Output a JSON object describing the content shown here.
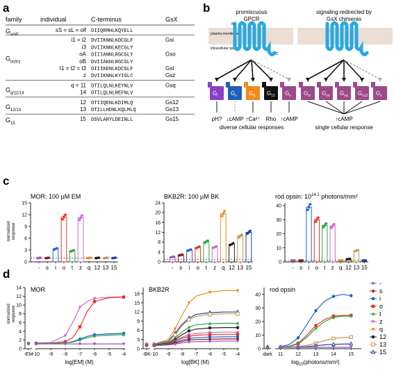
{
  "panel_labels": {
    "a": "a",
    "b": "b",
    "c": "c",
    "d": "d"
  },
  "table": {
    "headers": [
      "family",
      "individual",
      "C-terminus",
      "GsX"
    ],
    "groups": [
      {
        "family_main": "G",
        "family_sub": "s/olf",
        "rows": [
          {
            "individual": "sS = sL = olf",
            "seq": "DIIQRMHLKQYELL",
            "gsx": ""
          }
        ]
      },
      {
        "family_main": "G",
        "family_sub": "i/o/t/z",
        "rows": [
          {
            "individual": "i1 = i2",
            "seq": "DVIIKNNLKDCGLF",
            "gsx": "Gsi"
          },
          {
            "individual": "i3",
            "seq": "DVIIKNNLKECGLY",
            "gsx": ""
          },
          {
            "individual": "oA",
            "seq": "DIIIANNLRGCGLY",
            "gsx": "Gso"
          },
          {
            "individual": "oB",
            "seq": "DVIIAKNLRGCGLY",
            "gsx": ""
          },
          {
            "individual": "t1 = t2 = t3",
            "seq": "DIIIKENLKDCGLF",
            "gsx": "Gst"
          },
          {
            "individual": "z",
            "seq": "DVIIKNNLKYIGLC",
            "gsx": "Gsz"
          }
        ]
      },
      {
        "family_main": "G",
        "family_sub": "q/11/14",
        "rows": [
          {
            "individual": "q = 11",
            "seq": "DTILQLNLKEYNLV",
            "gsx": "Gsq"
          },
          {
            "individual": "14",
            "seq": "DTILQLNLREFNLV",
            "gsx": ""
          }
        ]
      },
      {
        "family_main": "G",
        "family_sub": "12/13",
        "rows": [
          {
            "individual": "12",
            "seq": "DTIIQENLKDIMLQ",
            "gsx": "Gs12"
          },
          {
            "individual": "13",
            "seq": "DTILLHDNLKQLMLQ",
            "gsx": "Gs13"
          }
        ]
      },
      {
        "family_main": "G",
        "family_sub": "15",
        "rows": [
          {
            "individual": "15",
            "seq": "DSVLARYLDEINLL",
            "gsx": "Gs15"
          }
        ]
      }
    ]
  },
  "diagram": {
    "left_title": [
      "promiscuous",
      "GPCR"
    ],
    "right_title": [
      "signaling redirected by",
      "GsX chimeras"
    ],
    "plasma_membrane": "plasma membrane",
    "intracellular": "intracellular space",
    "n_label": "N",
    "c_label": "C",
    "left_g": [
      {
        "main": "G",
        "sub": "i",
        "color": "#8a3fc7"
      },
      {
        "main": "G",
        "sub": "s",
        "color": "#1f5fbf"
      },
      {
        "main": "G",
        "sub": "q",
        "color": "#f08a1c"
      },
      {
        "main": "G",
        "sub": "12",
        "color": "#111111"
      },
      {
        "main": "G",
        "sub": "s",
        "color": "#9c4a8a"
      }
    ],
    "right_g": [
      {
        "main": "G",
        "sub": "si",
        "color": "#9c4a8a"
      },
      {
        "main": "G",
        "sub": "so",
        "color": "#9c4a8a"
      },
      {
        "main": "G",
        "sub": "sq",
        "color": "#9c4a8a"
      },
      {
        "main": "G",
        "sub": "s12",
        "color": "#9c4a8a"
      },
      {
        "main": "G",
        "sub": "s",
        "color": "#9c4a8a"
      }
    ],
    "left_outcomes": [
      "pH?",
      "↓cAMP",
      "↑Ca²⁺",
      "Rho",
      "↑cAMP"
    ],
    "left_caption": "diverse cellular responses",
    "right_outcome": "↑cAMP",
    "right_caption": "single cellular response",
    "gpcr_color": "#29a8e0"
  },
  "c_titles": [
    "MOR: 100 µM EM",
    "BKB2R: 100 µM BK",
    "rod opsin: 10^14.1 photons/mm²"
  ],
  "c_title3_parts": {
    "pre": "rod opsin: 10",
    "sup": "14.1",
    "post": " photons/mm²"
  },
  "c_ylabel": [
    "normalized",
    "response"
  ],
  "d_ylabel": [
    "normalized",
    "response"
  ],
  "d_titles": [
    "MOR",
    "BKB2R",
    "rod opsin"
  ],
  "d_xlabels": [
    "log[EM] (M)",
    "log[BK] (M)",
    "log10(photons/mm²)"
  ],
  "d_xlabel3_parts": {
    "pre": "log",
    "sub": "10",
    "post": "(photons/mm²)"
  },
  "legend": {
    "entries": [
      {
        "label": "-",
        "color": "#9b59b6",
        "marker": "tri-down"
      },
      {
        "label": "s",
        "color": "#8b1a1a",
        "marker": "diamond"
      },
      {
        "label": "i",
        "color": "#1f5fd6",
        "marker": "circle"
      },
      {
        "label": "o",
        "color": "#e8341c",
        "marker": "square"
      },
      {
        "label": "t",
        "color": "#27a844",
        "marker": "tri-up"
      },
      {
        "label": "z",
        "color": "#c66bd6",
        "marker": "tri-down"
      },
      {
        "label": "q",
        "color": "#f08a1c",
        "marker": "tri-down"
      },
      {
        "label": "12",
        "color": "#222222",
        "marker": "circle"
      },
      {
        "label": "13",
        "color": "#c8954a",
        "marker": "square-open"
      },
      {
        "label": "15",
        "color": "#1f3f9f",
        "marker": "tri-up-open"
      }
    ]
  },
  "chart_data": [
    {
      "type": "bar",
      "title": "MOR: 100 µM EM",
      "ylabel": "normalized response",
      "categories": [
        "-",
        "s",
        "i",
        "o",
        "t",
        "z",
        "q",
        "12",
        "13",
        "15"
      ],
      "values": [
        1.0,
        1.0,
        3.3,
        11.4,
        2.8,
        11.2,
        1.0,
        1.0,
        1.0,
        1.0
      ],
      "ylim": [
        0,
        15
      ],
      "yticks": [
        0,
        3,
        6,
        9,
        12,
        15
      ]
    },
    {
      "type": "bar",
      "title": "BKB2R: 100 µM BK",
      "ylabel": "normalized response",
      "categories": [
        "-",
        "s",
        "i",
        "o",
        "t",
        "z",
        "q",
        "12",
        "13",
        "15"
      ],
      "values": [
        2.0,
        2.8,
        4.8,
        5.9,
        8.2,
        6.0,
        19.6,
        7.2,
        10.5,
        12.0
      ],
      "ylim": [
        0,
        24
      ],
      "yticks": [
        0,
        4,
        8,
        12,
        16,
        20,
        24
      ]
    },
    {
      "type": "bar",
      "title": "rod opsin: 10^14.1 photons/mm²",
      "ylabel": "normalized response",
      "categories": [
        "-",
        "s",
        "i",
        "o",
        "t",
        "z",
        "q",
        "12",
        "13",
        "15"
      ],
      "values": [
        1.0,
        1.0,
        39.0,
        30.0,
        26.0,
        25.5,
        1.0,
        2.0,
        8.0,
        1.0
      ],
      "ylim": [
        0,
        42
      ],
      "yticks": [
        0,
        10,
        20,
        30,
        40
      ]
    },
    {
      "type": "line",
      "title": "MOR",
      "xlabel": "log[EM] (M)",
      "ylabel": "normalized response",
      "x_ticks": [
        "-EM",
        "-10",
        "-9",
        "-8",
        "-7",
        "-6",
        "-5",
        "-4"
      ],
      "xlim": [
        -10,
        -4
      ],
      "ylim": [
        0,
        14
      ],
      "yticks": [
        0,
        2,
        4,
        6,
        8,
        10,
        12,
        14
      ],
      "x": [
        -10,
        -9,
        -8,
        -7.5,
        -7,
        -6.5,
        -6,
        -5,
        -4
      ],
      "series": [
        {
          "name": "z",
          "values": [
            1.3,
            1.4,
            3.0,
            6.0,
            9.5,
            10.8,
            11.5,
            11.8,
            11.9
          ]
        },
        {
          "name": "o",
          "values": [
            1.2,
            1.3,
            1.6,
            2.5,
            5.0,
            8.5,
            10.8,
            11.7,
            11.8
          ]
        },
        {
          "name": "i",
          "values": [
            1.2,
            1.2,
            1.3,
            1.6,
            2.2,
            2.8,
            3.2,
            3.4,
            3.5
          ]
        },
        {
          "name": "t",
          "values": [
            1.2,
            1.2,
            1.3,
            1.5,
            2.0,
            2.5,
            2.9,
            3.1,
            3.2
          ]
        },
        {
          "name": "-",
          "values": [
            1.1,
            1.1,
            1.1,
            1.1,
            1.1,
            1.1,
            1.1,
            1.1,
            1.1
          ]
        }
      ]
    },
    {
      "type": "line",
      "title": "BKB2R",
      "xlabel": "log[BK] (M)",
      "ylabel": "normalized response",
      "x_ticks": [
        "-BK",
        "-10",
        "-9",
        "-8",
        "-7",
        "-6",
        "-5",
        "-4"
      ],
      "xlim": [
        -10,
        -4
      ],
      "ylim": [
        0,
        20
      ],
      "yticks": [
        0,
        3,
        6,
        9,
        12,
        15,
        18
      ],
      "x": [
        -10,
        -9,
        -8.5,
        -8,
        -7.5,
        -7,
        -6,
        -5,
        -4
      ],
      "series": [
        {
          "name": "q",
          "values": [
            1.5,
            3.0,
            6.5,
            11.0,
            15.0,
            17.2,
            18.5,
            19.0,
            19.0
          ]
        },
        {
          "name": "15",
          "values": [
            1.4,
            2.5,
            5.0,
            8.0,
            10.0,
            11.2,
            11.8,
            12.0,
            12.0
          ]
        },
        {
          "name": "13",
          "values": [
            1.3,
            2.3,
            4.5,
            7.5,
            9.5,
            10.6,
            11.2,
            11.4,
            11.4
          ]
        },
        {
          "name": "t",
          "values": [
            1.2,
            2.0,
            3.5,
            5.5,
            7.0,
            7.8,
            8.2,
            8.3,
            8.3
          ]
        },
        {
          "name": "12",
          "values": [
            1.2,
            1.8,
            3.0,
            4.6,
            5.8,
            6.4,
            6.8,
            6.9,
            6.9
          ]
        },
        {
          "name": "z",
          "values": [
            1.1,
            1.6,
            2.6,
            3.8,
            4.6,
            5.0,
            5.3,
            5.4,
            5.4
          ]
        },
        {
          "name": "o",
          "values": [
            1.1,
            1.5,
            2.4,
            3.4,
            4.0,
            4.4,
            4.6,
            4.7,
            4.7
          ]
        },
        {
          "name": "i",
          "values": [
            1.1,
            1.4,
            2.0,
            2.8,
            3.3,
            3.6,
            3.8,
            3.9,
            3.9
          ]
        },
        {
          "name": "s",
          "values": [
            1.0,
            1.3,
            1.8,
            2.4,
            2.8,
            3.0,
            3.1,
            3.2,
            3.2
          ]
        },
        {
          "name": "-",
          "values": [
            1.0,
            1.2,
            1.5,
            1.9,
            2.2,
            2.3,
            2.4,
            2.5,
            2.5
          ]
        }
      ]
    },
    {
      "type": "line",
      "title": "rod opsin",
      "xlabel": "log10(photons/mm²)",
      "ylabel": "normalized response",
      "x_ticks": [
        "dark",
        "11",
        "12",
        "13",
        "14",
        "15"
      ],
      "xlim": [
        10.7,
        15.5
      ],
      "ylim": [
        0,
        45
      ],
      "yticks": [
        0,
        10,
        20,
        30,
        40
      ],
      "x": [
        11,
        11.5,
        12,
        12.5,
        13,
        13.5,
        14,
        14.5,
        15
      ],
      "series": [
        {
          "name": "i",
          "values": [
            1.5,
            3.0,
            8.0,
            18.0,
            28.0,
            35.0,
            38.5,
            40.0,
            39.0
          ]
        },
        {
          "name": "o",
          "values": [
            1.2,
            1.8,
            4.0,
            10.0,
            17.0,
            21.5,
            24.0,
            24.5,
            24.5
          ]
        },
        {
          "name": "t",
          "values": [
            1.2,
            1.6,
            3.5,
            8.5,
            15.0,
            20.0,
            23.0,
            24.0,
            24.0
          ]
        },
        {
          "name": "13",
          "values": [
            1.0,
            1.2,
            1.5,
            2.5,
            4.0,
            6.0,
            7.5,
            8.2,
            8.5
          ]
        },
        {
          "name": "15",
          "values": [
            1.0,
            1.0,
            1.2,
            1.5,
            2.2,
            2.8,
            3.2,
            3.4,
            3.5
          ]
        },
        {
          "name": "-",
          "values": [
            1.0,
            1.0,
            1.0,
            1.0,
            1.0,
            1.0,
            1.0,
            1.0,
            1.0
          ]
        }
      ]
    }
  ]
}
